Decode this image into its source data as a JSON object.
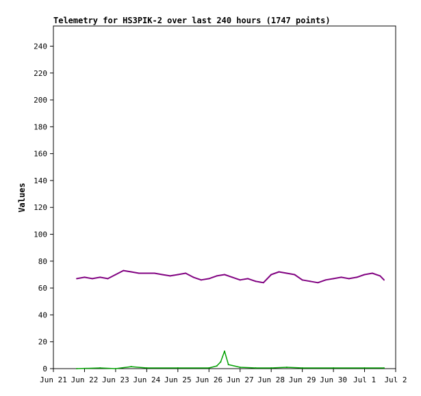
{
  "chart_data": {
    "type": "line",
    "title": "Telemetry for HS3PIK-2 over last 240 hours (1747 points)",
    "ylabel": "Values",
    "xlabel": "",
    "ylim": [
      0,
      255
    ],
    "yticks": [
      0,
      20,
      40,
      60,
      80,
      100,
      120,
      140,
      160,
      180,
      200,
      220,
      240
    ],
    "xlim": [
      "Jun 21",
      "Jul 2"
    ],
    "xticks": [
      "Jun 21",
      "Jun 22",
      "Jun 23",
      "Jun 24",
      "Jun 25",
      "Jun 26",
      "Jun 27",
      "Jun 28",
      "Jun 29",
      "Jun 30",
      "Jul 1",
      "Jul 2"
    ],
    "grid": false,
    "series": [
      {
        "color": "#800080",
        "x": [
          "Jun 21 18:00",
          "Jun 22 00:00",
          "Jun 22 06:00",
          "Jun 22 12:00",
          "Jun 22 18:00",
          "Jun 23 00:00",
          "Jun 23 06:00",
          "Jun 23 12:00",
          "Jun 23 18:00",
          "Jun 24 00:00",
          "Jun 24 06:00",
          "Jun 24 12:00",
          "Jun 24 18:00",
          "Jun 25 00:00",
          "Jun 25 06:00",
          "Jun 25 12:00",
          "Jun 25 18:00",
          "Jun 26 00:00",
          "Jun 26 06:00",
          "Jun 26 12:00",
          "Jun 26 18:00",
          "Jun 27 00:00",
          "Jun 27 06:00",
          "Jun 27 12:00",
          "Jun 27 18:00",
          "Jun 28 00:00",
          "Jun 28 06:00",
          "Jun 28 12:00",
          "Jun 28 18:00",
          "Jun 29 00:00",
          "Jun 29 06:00",
          "Jun 29 12:00",
          "Jun 29 18:00",
          "Jun 30 00:00",
          "Jun 30 06:00",
          "Jun 30 12:00",
          "Jun 30 18:00",
          "Jul 1 00:00",
          "Jul 1 06:00",
          "Jul 1 12:00",
          "Jul 1 15:00"
        ],
        "values": [
          67,
          68,
          67,
          68,
          67,
          70,
          73,
          72,
          71,
          71,
          71,
          70,
          69,
          70,
          71,
          68,
          66,
          67,
          69,
          70,
          68,
          66,
          67,
          65,
          64,
          70,
          72,
          71,
          70,
          66,
          65,
          64,
          66,
          67,
          68,
          67,
          68,
          70,
          71,
          69,
          66
        ]
      },
      {
        "color": "#00a000",
        "x": [
          "Jun 21 18:00",
          "Jun 22 12:00",
          "Jun 23 00:00",
          "Jun 23 12:00",
          "Jun 24 00:00",
          "Jun 25 00:00",
          "Jun 26 00:00",
          "Jun 26 06:00",
          "Jun 26 09:00",
          "Jun 26 12:00",
          "Jun 26 15:00",
          "Jun 27 00:00",
          "Jun 27 12:00",
          "Jun 28 00:00",
          "Jun 28 12:00",
          "Jun 29 00:00",
          "Jun 30 00:00",
          "Jul 1 00:00",
          "Jul 1 15:00"
        ],
        "values": [
          0,
          0.5,
          0,
          1.5,
          0.5,
          0.5,
          0.5,
          2,
          5,
          13,
          3,
          1,
          0.5,
          0.5,
          1,
          0.5,
          0.5,
          0.5,
          0.5
        ]
      }
    ]
  }
}
